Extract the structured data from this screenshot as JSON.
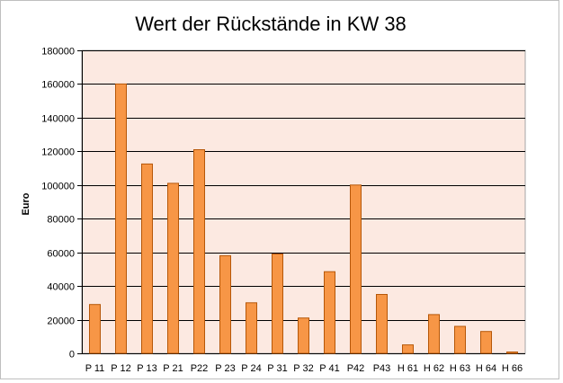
{
  "chart_data": {
    "type": "bar",
    "title": "Wert der Rückstände in KW 38",
    "xlabel": "",
    "ylabel": "Euro",
    "categories": [
      "P 11",
      "P 12",
      "P 13",
      "P 21",
      "P22",
      "P 23",
      "P 24",
      "P 31",
      "P 32",
      "P 41",
      "P42",
      "P43",
      "H 61",
      "H 62",
      "H 63",
      "H 64",
      "H 66"
    ],
    "values": [
      29000,
      160000,
      112500,
      101000,
      121000,
      58000,
      30000,
      59000,
      21000,
      48500,
      100000,
      35000,
      5000,
      23000,
      16000,
      13000,
      800
    ],
    "ylim": [
      0,
      180000
    ],
    "yticks": [
      "0",
      "20000",
      "40000",
      "60000",
      "80000",
      "100000",
      "120000",
      "140000",
      "160000",
      "180000"
    ],
    "grid": true,
    "legend": "none",
    "colors": {
      "bar_fill": "#f79646",
      "bar_stroke": "#b65708",
      "plot_background": "#fce9e1",
      "gridline": "#000000"
    }
  }
}
